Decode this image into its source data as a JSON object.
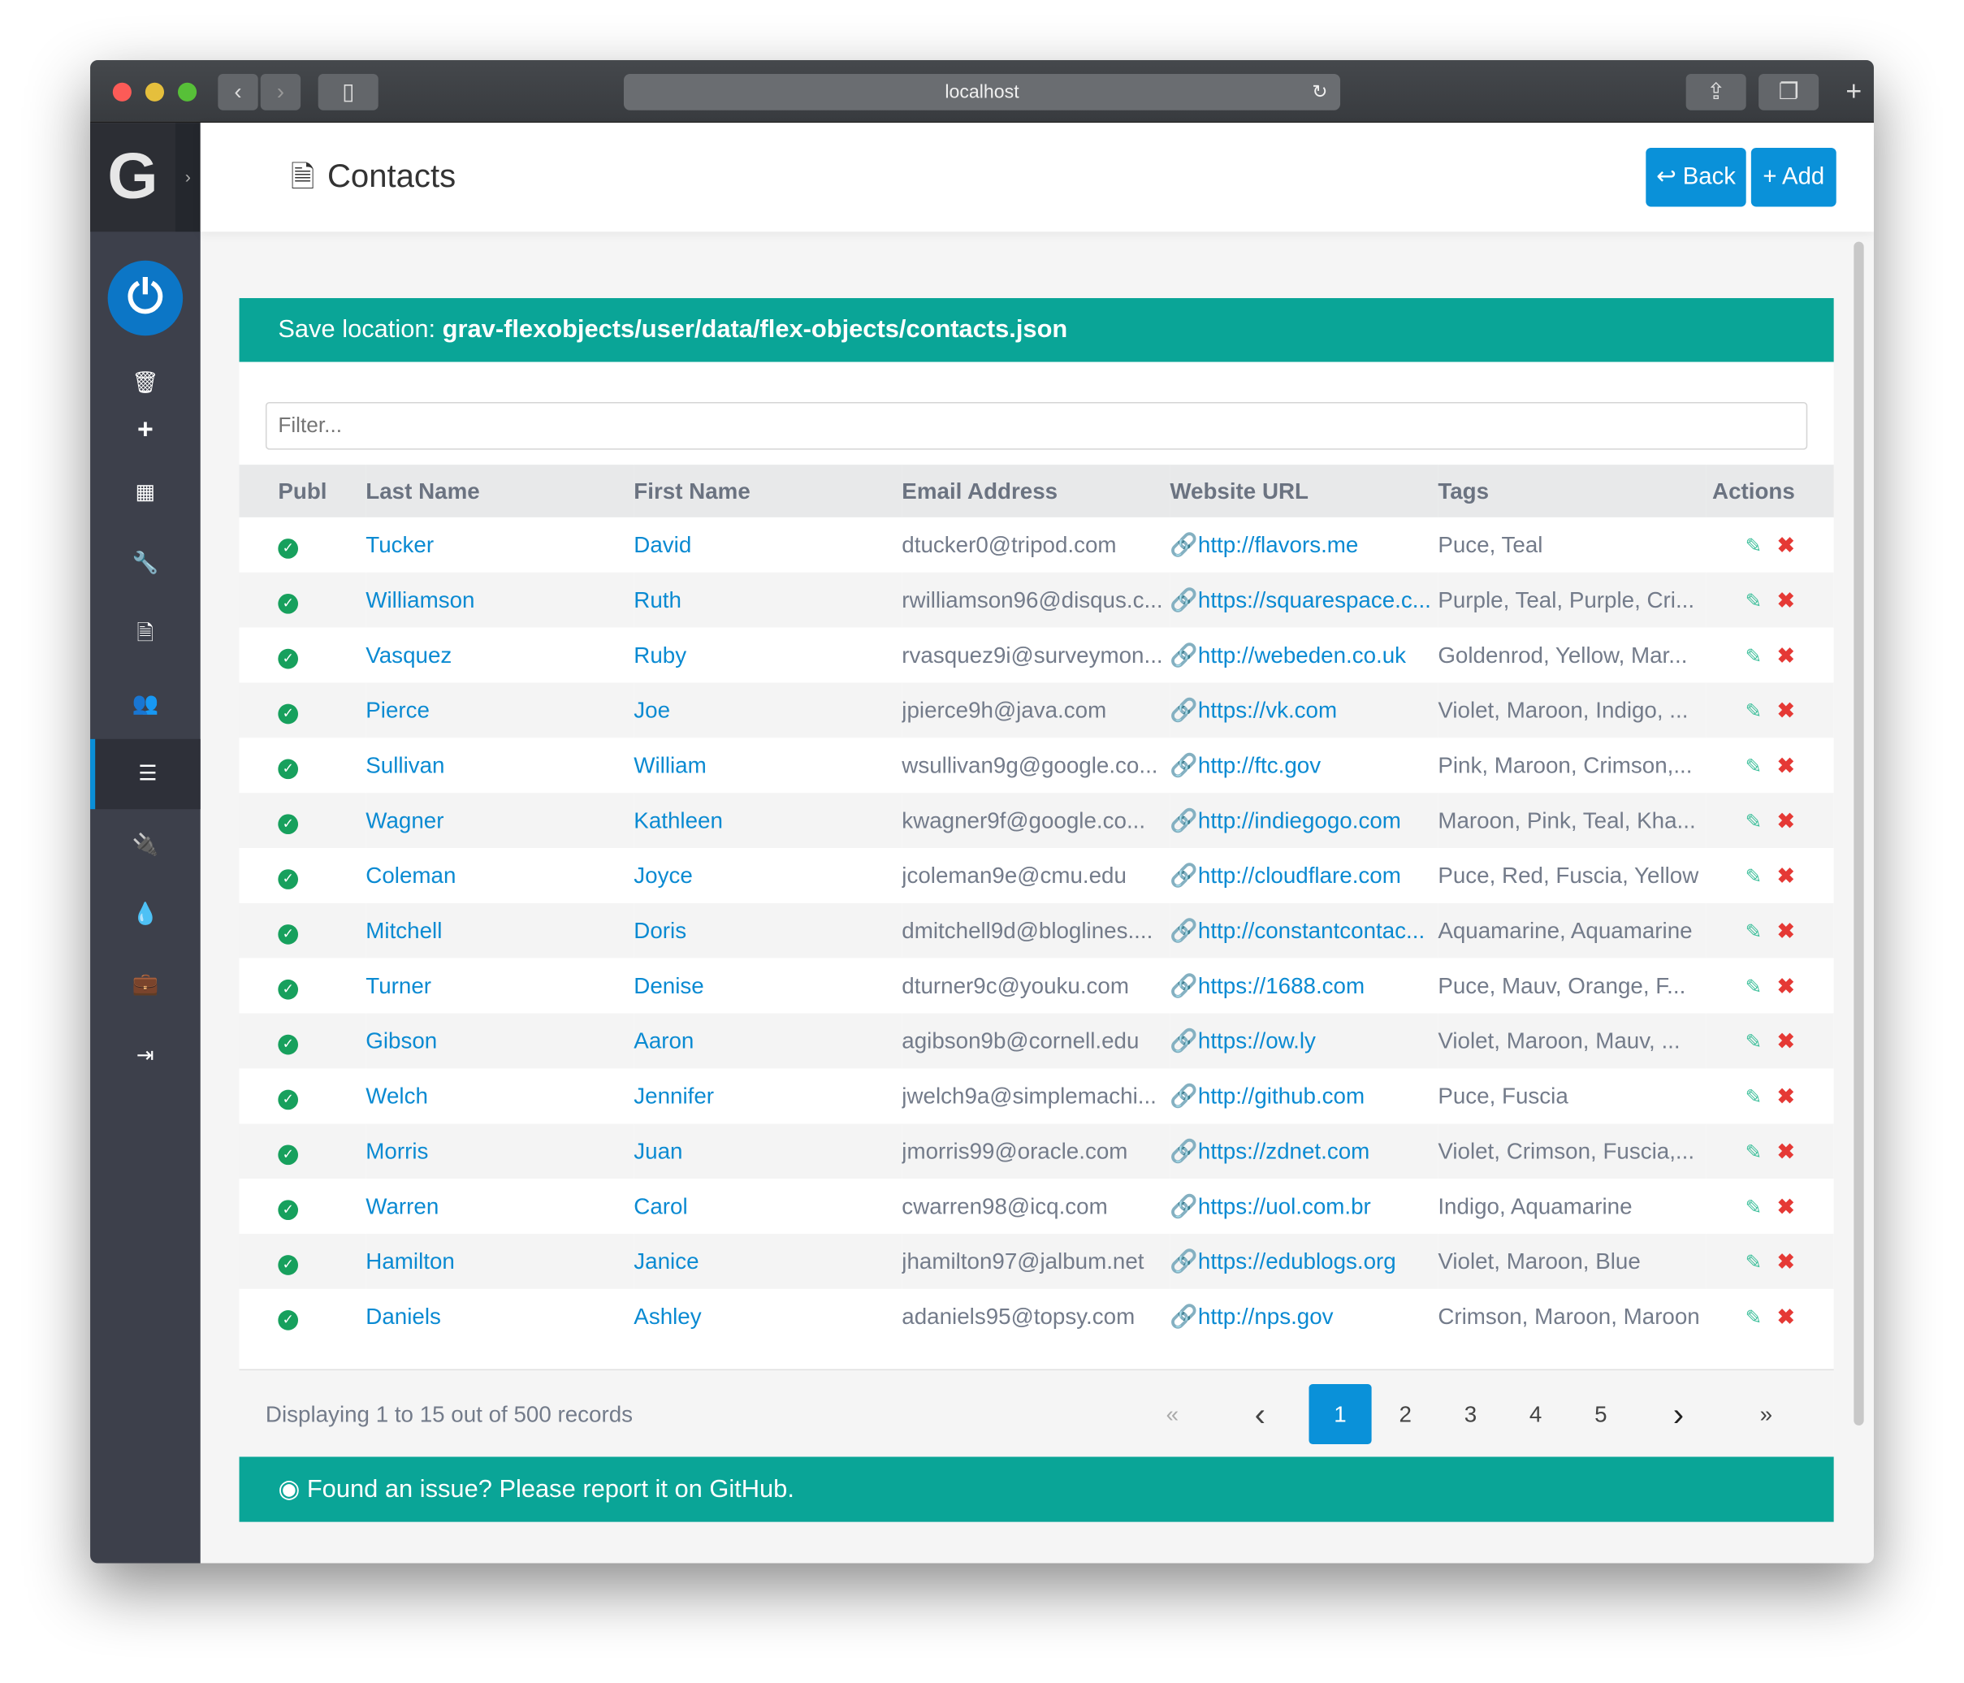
{
  "browser": {
    "url": "localhost",
    "icons": {
      "back": "chevron-left-icon",
      "forward": "chevron-right-icon",
      "sidebar": "sidebar-icon",
      "reload": "reload-icon",
      "share": "share-icon",
      "tabs": "tabs-icon",
      "new_tab": "plus-icon"
    }
  },
  "colors": {
    "accent": "#0a91d9",
    "teal": "#0aa597",
    "sidebar": "#3d404b",
    "success": "#17a05d",
    "danger": "#e53935"
  },
  "sidebar": {
    "logo": "G",
    "items": [
      "trash",
      "plus",
      "grid",
      "wrench",
      "file",
      "users",
      "list",
      "plug",
      "tint",
      "briefcase",
      "sign-out"
    ],
    "active": "list"
  },
  "header": {
    "title": "Contacts",
    "back_label": "Back",
    "add_label": "Add"
  },
  "save": {
    "label": "Save location:",
    "path": "grav-flexobjects/user/data/flex-objects/contacts.json"
  },
  "filter": {
    "placeholder": "Filter...",
    "value": ""
  },
  "table": {
    "columns": [
      "Publ",
      "Last Name",
      "First Name",
      "Email Address",
      "Website URL",
      "Tags",
      "Actions"
    ],
    "rows": [
      {
        "last": "Tucker",
        "first": "David",
        "email": "dtucker0@tripod.com",
        "url": "http://flavors.me",
        "tags": "Puce, Teal"
      },
      {
        "last": "Williamson",
        "first": "Ruth",
        "email": "rwilliamson96@disqus.c...",
        "url": "https://squarespace.c...",
        "tags": "Purple, Teal, Purple, Cri..."
      },
      {
        "last": "Vasquez",
        "first": "Ruby",
        "email": "rvasquez9i@surveymon...",
        "url": "http://webeden.co.uk",
        "tags": "Goldenrod, Yellow, Mar..."
      },
      {
        "last": "Pierce",
        "first": "Joe",
        "email": "jpierce9h@java.com",
        "url": "https://vk.com",
        "tags": "Violet, Maroon, Indigo, ..."
      },
      {
        "last": "Sullivan",
        "first": "William",
        "email": "wsullivan9g@google.co...",
        "url": "http://ftc.gov",
        "tags": "Pink, Maroon, Crimson,..."
      },
      {
        "last": "Wagner",
        "first": "Kathleen",
        "email": "kwagner9f@google.co...",
        "url": "http://indiegogo.com",
        "tags": "Maroon, Pink, Teal, Kha..."
      },
      {
        "last": "Coleman",
        "first": "Joyce",
        "email": "jcoleman9e@cmu.edu",
        "url": "http://cloudflare.com",
        "tags": "Puce, Red, Fuscia, Yellow"
      },
      {
        "last": "Mitchell",
        "first": "Doris",
        "email": "dmitchell9d@bloglines....",
        "url": "http://constantcontac...",
        "tags": "Aquamarine, Aquamarine"
      },
      {
        "last": "Turner",
        "first": "Denise",
        "email": "dturner9c@youku.com",
        "url": "https://1688.com",
        "tags": "Puce, Mauv, Orange, F..."
      },
      {
        "last": "Gibson",
        "first": "Aaron",
        "email": "agibson9b@cornell.edu",
        "url": "https://ow.ly",
        "tags": "Violet, Maroon, Mauv, ..."
      },
      {
        "last": "Welch",
        "first": "Jennifer",
        "email": "jwelch9a@simplemachi...",
        "url": "http://github.com",
        "tags": "Puce, Fuscia"
      },
      {
        "last": "Morris",
        "first": "Juan",
        "email": "jmorris99@oracle.com",
        "url": "https://zdnet.com",
        "tags": "Violet, Crimson, Fuscia,..."
      },
      {
        "last": "Warren",
        "first": "Carol",
        "email": "cwarren98@icq.com",
        "url": "https://uol.com.br",
        "tags": "Indigo, Aquamarine"
      },
      {
        "last": "Hamilton",
        "first": "Janice",
        "email": "jhamilton97@jalbum.net",
        "url": "https://edublogs.org",
        "tags": "Violet, Maroon, Blue"
      },
      {
        "last": "Daniels",
        "first": "Ashley",
        "email": "adaniels95@topsy.com",
        "url": "http://nps.gov",
        "tags": "Crimson, Maroon, Maroon"
      }
    ]
  },
  "pagination": {
    "summary": "Displaying 1 to 15 out of 500 records",
    "pages": [
      "1",
      "2",
      "3",
      "4",
      "5"
    ],
    "current": "1",
    "first": "«",
    "prev": "‹",
    "next": "›",
    "last": "»"
  },
  "footer": {
    "github": "Found an issue? Please report it on GitHub."
  }
}
